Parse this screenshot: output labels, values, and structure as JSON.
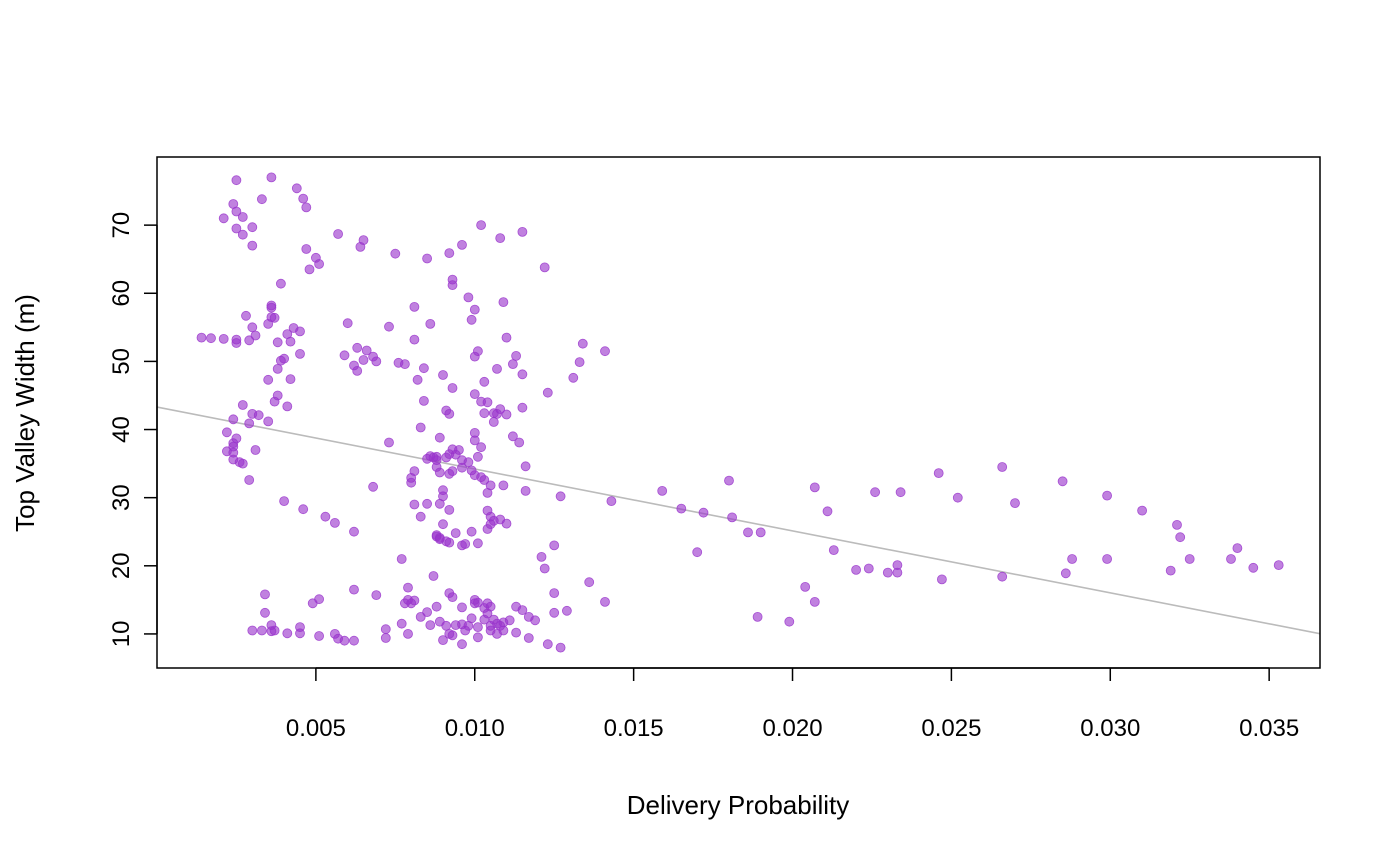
{
  "chart_data": {
    "type": "scatter",
    "title": "",
    "xlabel": "Delivery Probability",
    "ylabel": "Top Valley Width (m)",
    "xlim": [
      0.0,
      0.0366
    ],
    "ylim": [
      5,
      80
    ],
    "x_ticks": [
      0.005,
      0.01,
      0.015,
      0.02,
      0.025,
      0.03,
      0.035
    ],
    "x_tick_labels": [
      "0.005",
      "0.010",
      "0.015",
      "0.020",
      "0.025",
      "0.030",
      "0.035"
    ],
    "y_ticks": [
      10,
      20,
      30,
      40,
      50,
      60,
      70
    ],
    "y_tick_labels": [
      "10",
      "20",
      "30",
      "40",
      "50",
      "60",
      "70"
    ],
    "grid": false,
    "legend": "none",
    "point_color": "#9933cc",
    "trend_line": {
      "slope": -909,
      "intercept": 43.3,
      "color": "#bbbbbb"
    },
    "points": [
      [
        0.0025,
        76.6
      ],
      [
        0.0036,
        77.0
      ],
      [
        0.0044,
        75.4
      ],
      [
        0.0046,
        73.9
      ],
      [
        0.0047,
        72.6
      ],
      [
        0.0033,
        73.8
      ],
      [
        0.0024,
        73.1
      ],
      [
        0.0025,
        72.0
      ],
      [
        0.0021,
        71.0
      ],
      [
        0.0027,
        71.2
      ],
      [
        0.0025,
        69.5
      ],
      [
        0.003,
        69.7
      ],
      [
        0.0027,
        68.6
      ],
      [
        0.003,
        67.0
      ],
      [
        0.0047,
        66.5
      ],
      [
        0.005,
        65.2
      ],
      [
        0.0051,
        64.3
      ],
      [
        0.0048,
        63.5
      ],
      [
        0.0057,
        68.7
      ],
      [
        0.0064,
        66.8
      ],
      [
        0.0065,
        67.8
      ],
      [
        0.0075,
        65.8
      ],
      [
        0.0039,
        61.4
      ],
      [
        0.0036,
        58.2
      ],
      [
        0.0036,
        57.9
      ],
      [
        0.0028,
        56.7
      ],
      [
        0.0036,
        56.5
      ],
      [
        0.0037,
        56.4
      ],
      [
        0.0035,
        55.5
      ],
      [
        0.003,
        55.0
      ],
      [
        0.0043,
        54.9
      ],
      [
        0.0045,
        54.4
      ],
      [
        0.0041,
        54.0
      ],
      [
        0.0031,
        53.8
      ],
      [
        0.0014,
        53.5
      ],
      [
        0.0017,
        53.4
      ],
      [
        0.0021,
        53.3
      ],
      [
        0.0025,
        53.2
      ],
      [
        0.0025,
        52.7
      ],
      [
        0.0029,
        53.1
      ],
      [
        0.0042,
        52.9
      ],
      [
        0.0038,
        52.8
      ],
      [
        0.0045,
        51.1
      ],
      [
        0.004,
        50.4
      ],
      [
        0.0039,
        50.1
      ],
      [
        0.0038,
        48.9
      ],
      [
        0.0042,
        47.4
      ],
      [
        0.0035,
        47.3
      ],
      [
        0.0038,
        45.0
      ],
      [
        0.0037,
        44.1
      ],
      [
        0.0041,
        43.4
      ],
      [
        0.0027,
        43.6
      ],
      [
        0.003,
        42.3
      ],
      [
        0.0032,
        42.1
      ],
      [
        0.0024,
        41.5
      ],
      [
        0.0035,
        41.2
      ],
      [
        0.0029,
        40.9
      ],
      [
        0.0022,
        39.6
      ],
      [
        0.0025,
        38.7
      ],
      [
        0.0024,
        38.0
      ],
      [
        0.0024,
        37.5
      ],
      [
        0.0022,
        36.8
      ],
      [
        0.0024,
        36.6
      ],
      [
        0.0031,
        37.0
      ],
      [
        0.0024,
        35.6
      ],
      [
        0.0026,
        35.2
      ],
      [
        0.0027,
        35.0
      ],
      [
        0.0029,
        32.6
      ],
      [
        0.004,
        29.5
      ],
      [
        0.0046,
        28.3
      ],
      [
        0.0053,
        27.2
      ],
      [
        0.0056,
        26.3
      ],
      [
        0.0062,
        25.0
      ],
      [
        0.0068,
        31.6
      ],
      [
        0.0073,
        38.1
      ],
      [
        0.006,
        55.6
      ],
      [
        0.0059,
        50.9
      ],
      [
        0.0063,
        52.0
      ],
      [
        0.0066,
        51.6
      ],
      [
        0.0068,
        50.7
      ],
      [
        0.0069,
        50.0
      ],
      [
        0.0065,
        50.2
      ],
      [
        0.0062,
        49.4
      ],
      [
        0.0063,
        48.6
      ],
      [
        0.0073,
        55.1
      ],
      [
        0.0076,
        49.8
      ],
      [
        0.0078,
        49.6
      ],
      [
        0.0081,
        53.2
      ],
      [
        0.0081,
        58.0
      ],
      [
        0.0086,
        55.5
      ],
      [
        0.0085,
        65.1
      ],
      [
        0.0092,
        65.9
      ],
      [
        0.0096,
        67.1
      ],
      [
        0.0093,
        62.0
      ],
      [
        0.0093,
        61.2
      ],
      [
        0.0098,
        59.4
      ],
      [
        0.01,
        57.6
      ],
      [
        0.0099,
        56.1
      ],
      [
        0.0102,
        70.0
      ],
      [
        0.0108,
        68.1
      ],
      [
        0.0115,
        69.0
      ],
      [
        0.0109,
        58.7
      ],
      [
        0.0122,
        63.8
      ],
      [
        0.0084,
        49.0
      ],
      [
        0.0082,
        47.3
      ],
      [
        0.009,
        48.0
      ],
      [
        0.0084,
        44.2
      ],
      [
        0.0091,
        42.8
      ],
      [
        0.0092,
        42.3
      ],
      [
        0.0083,
        40.3
      ],
      [
        0.0089,
        38.8
      ],
      [
        0.0093,
        46.1
      ],
      [
        0.01,
        45.2
      ],
      [
        0.0102,
        44.1
      ],
      [
        0.0104,
        44.0
      ],
      [
        0.0103,
        47.0
      ],
      [
        0.01,
        50.7
      ],
      [
        0.0101,
        51.5
      ],
      [
        0.0107,
        48.9
      ],
      [
        0.011,
        53.5
      ],
      [
        0.0112,
        49.6
      ],
      [
        0.0113,
        50.8
      ],
      [
        0.0115,
        48.1
      ],
      [
        0.0115,
        43.2
      ],
      [
        0.011,
        42.2
      ],
      [
        0.0108,
        43.0
      ],
      [
        0.0107,
        42.3
      ],
      [
        0.0106,
        42.4
      ],
      [
        0.0103,
        42.4
      ],
      [
        0.0106,
        41.1
      ],
      [
        0.01,
        39.5
      ],
      [
        0.01,
        38.4
      ],
      [
        0.0102,
        37.4
      ],
      [
        0.0095,
        37.0
      ],
      [
        0.0093,
        37.1
      ],
      [
        0.0094,
        36.3
      ],
      [
        0.0092,
        36.4
      ],
      [
        0.0091,
        35.9
      ],
      [
        0.0096,
        35.5
      ],
      [
        0.0098,
        35.2
      ],
      [
        0.0101,
        36.0
      ],
      [
        0.0112,
        39.0
      ],
      [
        0.0114,
        38.1
      ],
      [
        0.0116,
        34.6
      ],
      [
        0.0123,
        45.4
      ],
      [
        0.0131,
        47.6
      ],
      [
        0.0133,
        49.9
      ],
      [
        0.0134,
        52.6
      ],
      [
        0.0141,
        51.5
      ],
      [
        0.0088,
        36.0
      ],
      [
        0.0086,
        36.1
      ],
      [
        0.0087,
        35.9
      ],
      [
        0.0088,
        35.5
      ],
      [
        0.0085,
        35.7
      ],
      [
        0.0088,
        34.5
      ],
      [
        0.0089,
        33.7
      ],
      [
        0.0092,
        33.5
      ],
      [
        0.0093,
        33.9
      ],
      [
        0.0096,
        34.4
      ],
      [
        0.0099,
        34.0
      ],
      [
        0.01,
        33.3
      ],
      [
        0.0102,
        33.0
      ],
      [
        0.0103,
        32.6
      ],
      [
        0.0105,
        31.8
      ],
      [
        0.0104,
        30.7
      ],
      [
        0.0109,
        31.8
      ],
      [
        0.0116,
        31.0
      ],
      [
        0.0081,
        33.9
      ],
      [
        0.008,
        32.9
      ],
      [
        0.008,
        32.2
      ],
      [
        0.009,
        31.1
      ],
      [
        0.009,
        30.2
      ],
      [
        0.0089,
        29.1
      ],
      [
        0.0085,
        29.1
      ],
      [
        0.0081,
        29.0
      ],
      [
        0.0083,
        27.2
      ],
      [
        0.0092,
        28.2
      ],
      [
        0.0104,
        28.1
      ],
      [
        0.0105,
        27.2
      ],
      [
        0.0106,
        26.6
      ],
      [
        0.0105,
        26.1
      ],
      [
        0.0108,
        26.8
      ],
      [
        0.0104,
        25.4
      ],
      [
        0.011,
        26.2
      ],
      [
        0.009,
        26.1
      ],
      [
        0.0094,
        24.8
      ],
      [
        0.0099,
        25.0
      ],
      [
        0.0088,
        24.5
      ],
      [
        0.0088,
        24.3
      ],
      [
        0.0089,
        24.1
      ],
      [
        0.0089,
        23.9
      ],
      [
        0.0091,
        23.6
      ],
      [
        0.0092,
        23.4
      ],
      [
        0.0096,
        23.0
      ],
      [
        0.0097,
        23.2
      ],
      [
        0.0101,
        23.3
      ],
      [
        0.0127,
        30.2
      ],
      [
        0.0143,
        29.5
      ],
      [
        0.0159,
        31.0
      ],
      [
        0.0165,
        28.4
      ],
      [
        0.0172,
        27.8
      ],
      [
        0.018,
        32.5
      ],
      [
        0.0181,
        27.1
      ],
      [
        0.0186,
        24.9
      ],
      [
        0.019,
        24.9
      ],
      [
        0.017,
        22.0
      ],
      [
        0.0125,
        23.0
      ],
      [
        0.0121,
        21.3
      ],
      [
        0.0122,
        19.6
      ],
      [
        0.0077,
        21.0
      ],
      [
        0.0087,
        18.5
      ],
      [
        0.0079,
        16.8
      ],
      [
        0.0079,
        15.0
      ],
      [
        0.0081,
        14.9
      ],
      [
        0.0078,
        14.5
      ],
      [
        0.008,
        14.5
      ],
      [
        0.0088,
        14.0
      ],
      [
        0.0085,
        13.2
      ],
      [
        0.0083,
        12.5
      ],
      [
        0.0077,
        11.5
      ],
      [
        0.0072,
        10.7
      ],
      [
        0.0072,
        9.4
      ],
      [
        0.0079,
        10.0
      ],
      [
        0.0086,
        11.3
      ],
      [
        0.0089,
        11.8
      ],
      [
        0.0091,
        11.2
      ],
      [
        0.009,
        9.1
      ],
      [
        0.0092,
        10.0
      ],
      [
        0.0093,
        9.8
      ],
      [
        0.0094,
        11.3
      ],
      [
        0.0092,
        16.0
      ],
      [
        0.0093,
        15.4
      ],
      [
        0.0096,
        13.9
      ],
      [
        0.01,
        15.0
      ],
      [
        0.01,
        14.5
      ],
      [
        0.0101,
        14.6
      ],
      [
        0.0103,
        13.8
      ],
      [
        0.0104,
        14.5
      ],
      [
        0.0105,
        14.0
      ],
      [
        0.0104,
        13.0
      ],
      [
        0.0096,
        11.4
      ],
      [
        0.0097,
        10.5
      ],
      [
        0.0096,
        8.5
      ],
      [
        0.0098,
        11.2
      ],
      [
        0.0099,
        12.3
      ],
      [
        0.0101,
        11.0
      ],
      [
        0.0101,
        9.5
      ],
      [
        0.0103,
        12.1
      ],
      [
        0.0105,
        11.2
      ],
      [
        0.0105,
        10.5
      ],
      [
        0.0106,
        12.1
      ],
      [
        0.0107,
        11.5
      ],
      [
        0.0108,
        11.2
      ],
      [
        0.0109,
        11.7
      ],
      [
        0.0107,
        10.0
      ],
      [
        0.0109,
        10.5
      ],
      [
        0.0111,
        12.0
      ],
      [
        0.0113,
        14.0
      ],
      [
        0.0115,
        13.5
      ],
      [
        0.0117,
        12.5
      ],
      [
        0.0119,
        12.0
      ],
      [
        0.0113,
        10.2
      ],
      [
        0.0117,
        9.4
      ],
      [
        0.0123,
        8.5
      ],
      [
        0.0127,
        8.0
      ],
      [
        0.0125,
        13.1
      ],
      [
        0.0129,
        13.4
      ],
      [
        0.0125,
        16.0
      ],
      [
        0.0136,
        17.6
      ],
      [
        0.0141,
        14.7
      ],
      [
        0.0056,
        10.0
      ],
      [
        0.0057,
        9.3
      ],
      [
        0.0059,
        9.0
      ],
      [
        0.0062,
        9.0
      ],
      [
        0.0051,
        9.7
      ],
      [
        0.0045,
        10.1
      ],
      [
        0.0041,
        10.1
      ],
      [
        0.0037,
        10.5
      ],
      [
        0.0036,
        10.4
      ],
      [
        0.0036,
        11.3
      ],
      [
        0.0034,
        13.1
      ],
      [
        0.003,
        10.5
      ],
      [
        0.0033,
        10.5
      ],
      [
        0.0034,
        15.8
      ],
      [
        0.0045,
        11.0
      ],
      [
        0.0049,
        14.5
      ],
      [
        0.0051,
        15.1
      ],
      [
        0.0062,
        16.5
      ],
      [
        0.0069,
        15.7
      ],
      [
        0.0189,
        12.5
      ],
      [
        0.0199,
        11.8
      ],
      [
        0.0204,
        16.9
      ],
      [
        0.0207,
        14.7
      ],
      [
        0.0207,
        31.5
      ],
      [
        0.0211,
        28.0
      ],
      [
        0.0213,
        22.3
      ],
      [
        0.022,
        19.4
      ],
      [
        0.0224,
        19.6
      ],
      [
        0.0226,
        30.8
      ],
      [
        0.023,
        19.0
      ],
      [
        0.0233,
        19.0
      ],
      [
        0.0233,
        20.1
      ],
      [
        0.0234,
        30.8
      ],
      [
        0.0246,
        33.6
      ],
      [
        0.0247,
        18.0
      ],
      [
        0.0252,
        30.0
      ],
      [
        0.0266,
        34.5
      ],
      [
        0.0266,
        18.4
      ],
      [
        0.027,
        29.2
      ],
      [
        0.0285,
        32.4
      ],
      [
        0.0286,
        18.9
      ],
      [
        0.0288,
        21.0
      ],
      [
        0.0299,
        30.3
      ],
      [
        0.0299,
        21.0
      ],
      [
        0.031,
        28.1
      ],
      [
        0.0319,
        19.3
      ],
      [
        0.0321,
        26.0
      ],
      [
        0.0322,
        24.2
      ],
      [
        0.0325,
        21.0
      ],
      [
        0.0338,
        21.0
      ],
      [
        0.034,
        22.6
      ],
      [
        0.0345,
        19.7
      ],
      [
        0.0353,
        20.1
      ]
    ]
  }
}
